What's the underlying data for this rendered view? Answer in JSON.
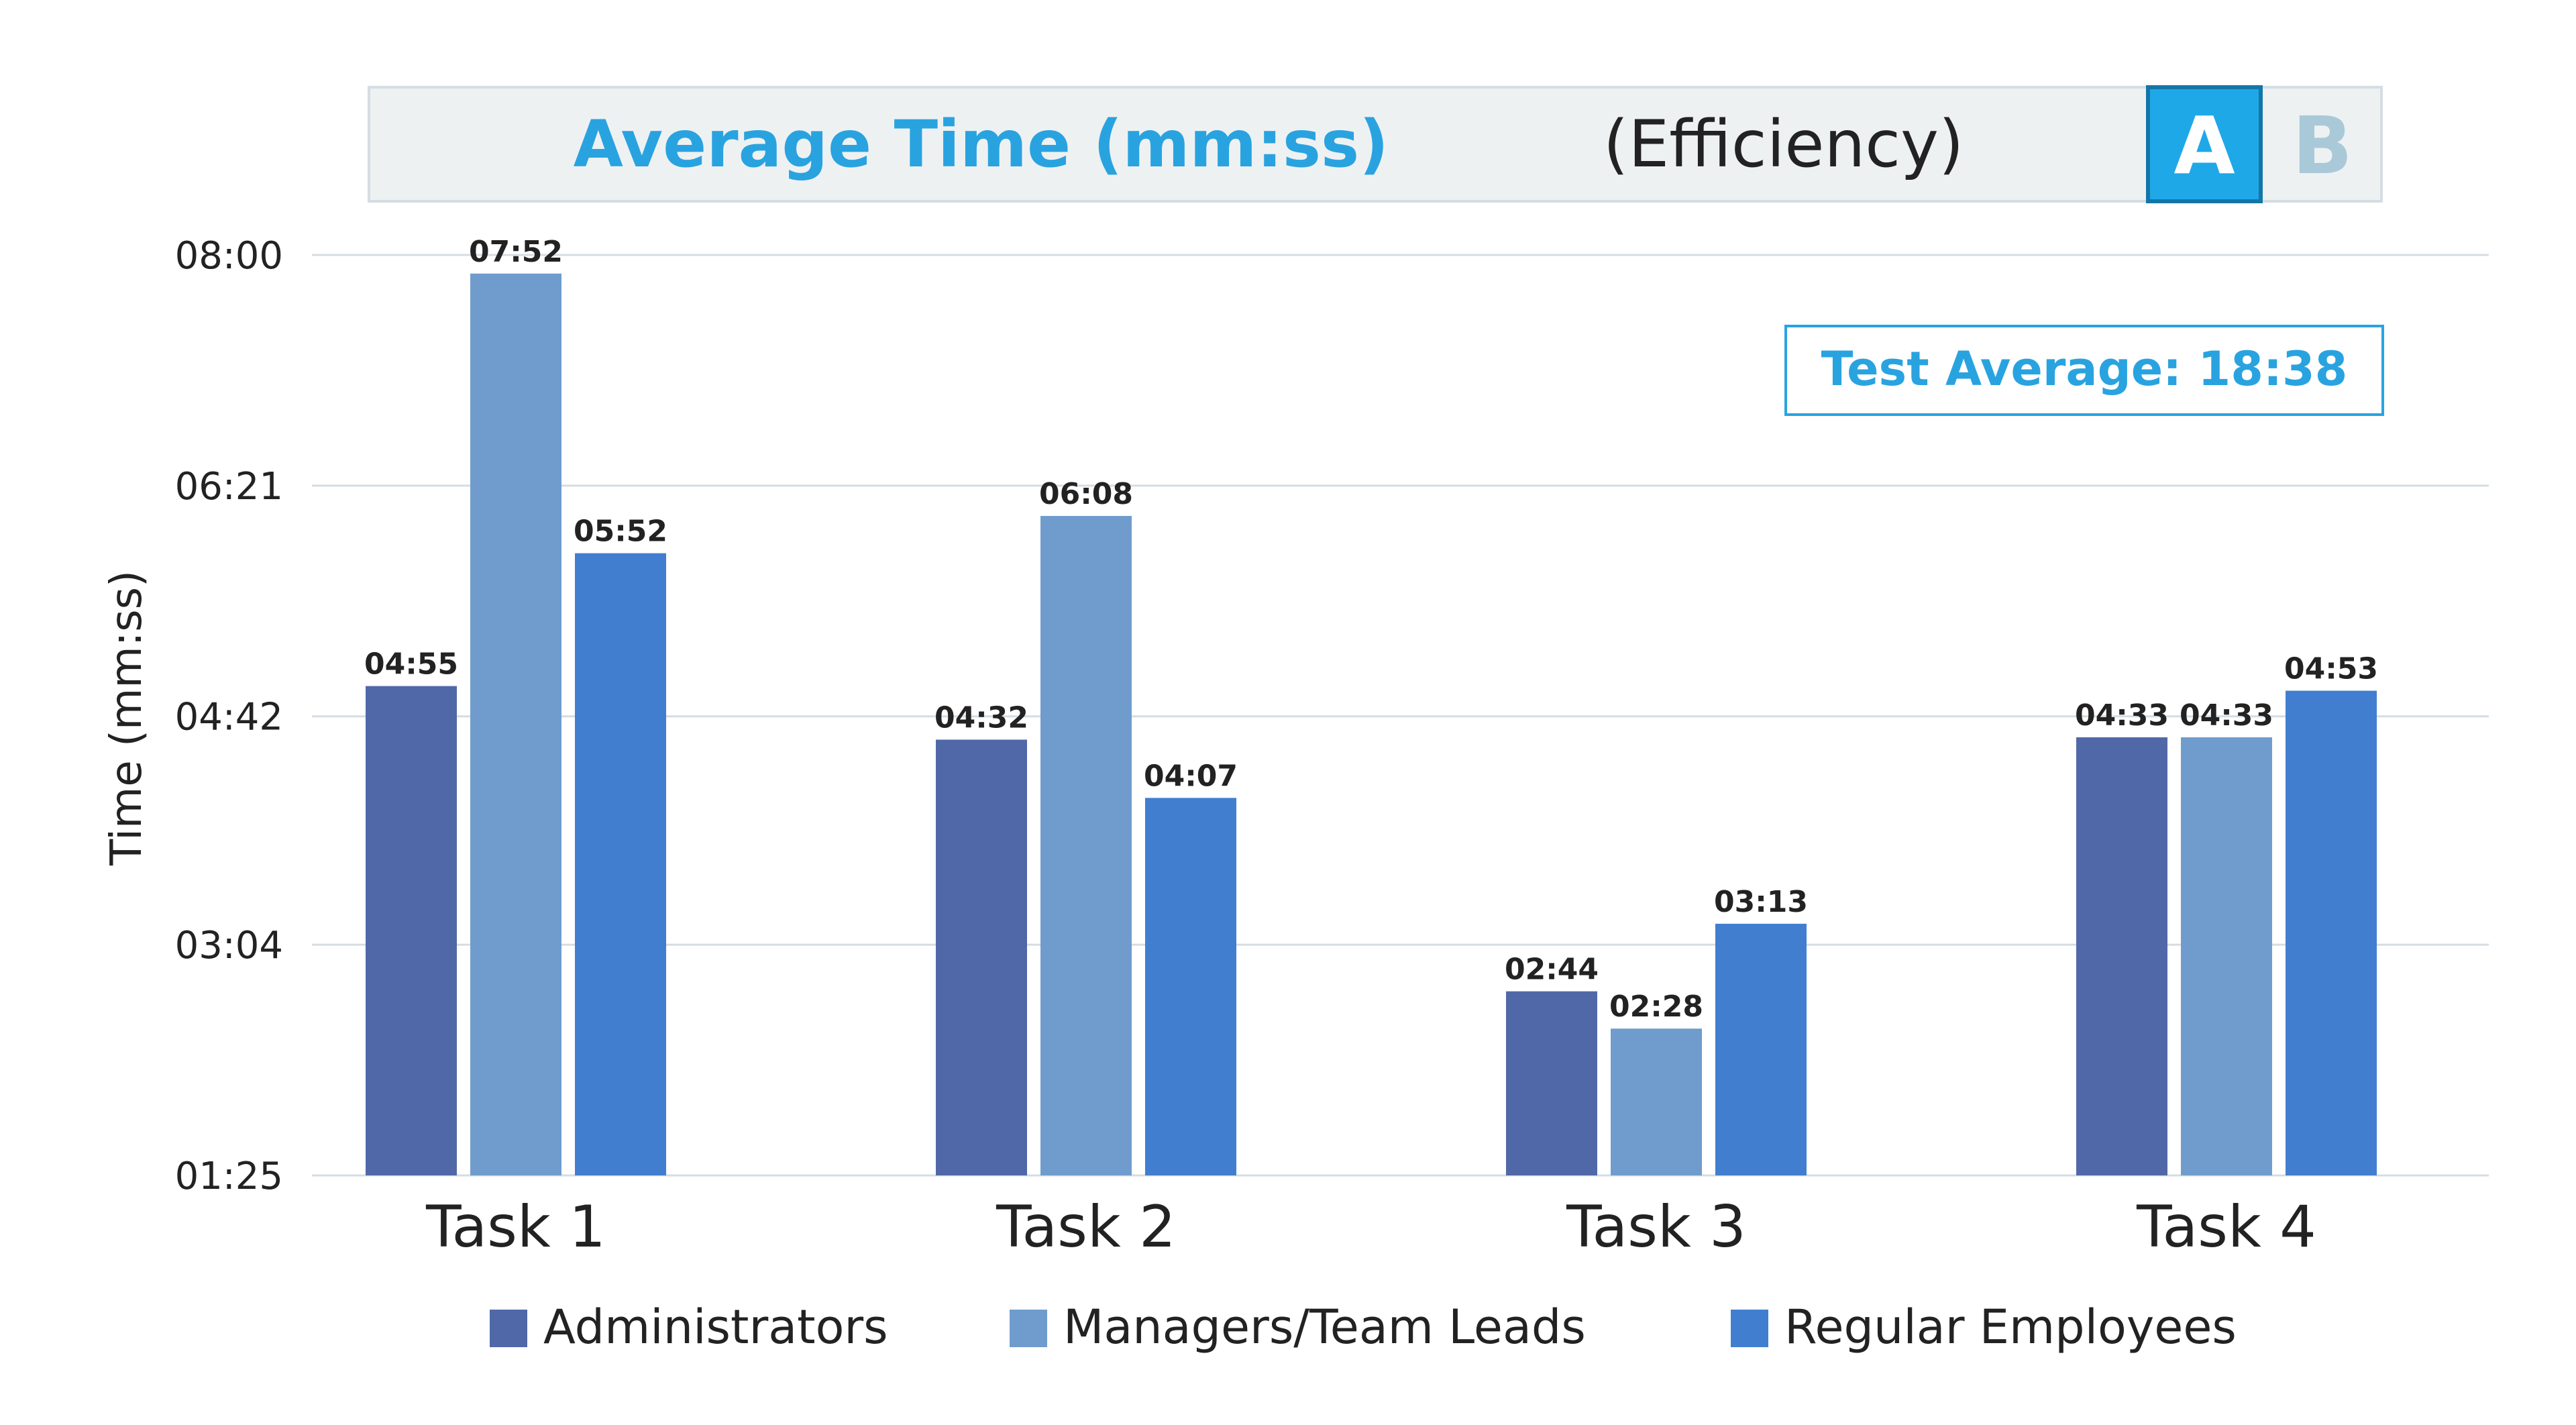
{
  "chart_data": {
    "type": "bar",
    "title": {
      "main": "Average Time (mm:ss)",
      "suffix": "(Efficiency)"
    },
    "variant_toggle": {
      "options": [
        "A",
        "B"
      ],
      "selected": "A"
    },
    "summary_box": "Test Average: 18:38",
    "ylabel": "Time (mm:ss)",
    "y_ticks": [
      "01:25",
      "03:04",
      "04:42",
      "06:21",
      "08:00"
    ],
    "ylim_seconds": [
      85,
      480
    ],
    "categories": [
      "Task 1",
      "Task 2",
      "Task 3",
      "Task 4"
    ],
    "series": [
      {
        "name": "Administrators",
        "color": "#5068a8",
        "values": [
          "04:55",
          "04:32",
          "02:44",
          "04:33"
        ]
      },
      {
        "name": "Managers/Team Leads",
        "color": "#6f9ccd",
        "values": [
          "07:52",
          "06:08",
          "02:28",
          "04:33"
        ]
      },
      {
        "name": "Regular Employees",
        "color": "#417ecf",
        "values": [
          "05:52",
          "04:07",
          "03:13",
          "04:53"
        ]
      }
    ],
    "grid": true,
    "legend": "bottom",
    "colors": {
      "accent": "#29a3e0",
      "title_box_bg": "#eef1f2",
      "grid": "#d5dde3",
      "text": "#222222"
    }
  }
}
